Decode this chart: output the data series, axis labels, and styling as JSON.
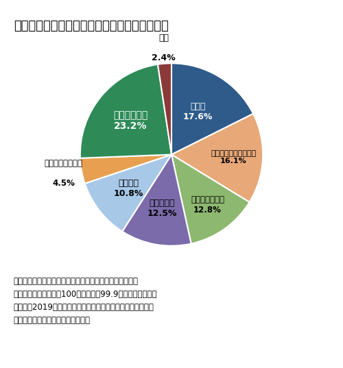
{
  "title": "図８　介護が必要になった主な原因の構成割合",
  "slices": [
    {
      "label": "認知症\n17.6%",
      "value": 17.6,
      "color": "#2E5B8A"
    },
    {
      "label": "脳血管疾患（脳卒中）\n16.1%",
      "value": 16.1,
      "color": "#E8A878"
    },
    {
      "label": "高齢による衰弱\n12.8%",
      "value": 12.8,
      "color": "#8DB870"
    },
    {
      "label": "骨折・転倒\n12.5%",
      "value": 12.5,
      "color": "#7B6BAA"
    },
    {
      "label": "関節疾患\n10.8%",
      "value": 10.8,
      "color": "#A8C8E8"
    },
    {
      "label": "心疾患（心臓病）\n4.5%",
      "value": 4.5,
      "color": "#E8A050"
    },
    {
      "label": "その他の原因\n23.2%",
      "value": 23.2,
      "color": "#2E8B57"
    },
    {
      "label": "不詳\n2.4%",
      "value": 2.4,
      "color": "#8B3A3A"
    }
  ],
  "note_line1": "注：パーセント（％）は小数点第二位以下を四捨五入して",
  "note_line2": "　　いるため、合計が100％ではなく99.9％となっている。",
  "note_line3": "出所：「2019年国民生活基礎調査」（厚生労働省）をもとに",
  "note_line4": "　　医薬産業政策研究所にて作成。",
  "background_color": "#FFFFFF",
  "startangle": 90
}
